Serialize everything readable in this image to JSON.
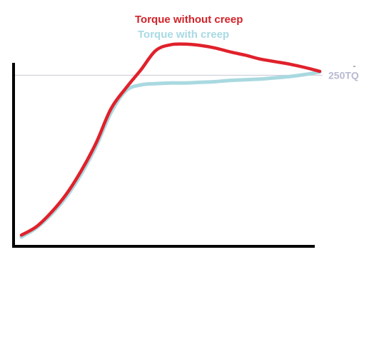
{
  "chart_data": {
    "type": "line",
    "title": "",
    "xlabel": "",
    "ylabel": "",
    "xlim": [
      0,
      100
    ],
    "ylim": [
      0,
      300
    ],
    "grid": false,
    "legend_placement": "top-center",
    "reference_line": {
      "label": "250TQ",
      "y": 250,
      "color": "#c8c8d8",
      "label_color": "#b9b9d2"
    },
    "series": [
      {
        "name": "Torque with creep",
        "color": "#a9d9e0",
        "x": [
          0,
          5,
          10,
          15,
          20,
          25,
          30,
          35,
          40,
          45,
          50,
          55,
          60,
          65,
          70,
          75,
          80,
          85,
          90,
          95,
          100
        ],
        "y": [
          0,
          14,
          35,
          62,
          97,
          140,
          192,
          226,
          235,
          237,
          238,
          238,
          239,
          240,
          242,
          243,
          244,
          246,
          248,
          251,
          255
        ]
      },
      {
        "name": "Torque without creep",
        "color": "#e0212b",
        "x": [
          0,
          5,
          10,
          15,
          20,
          25,
          30,
          35,
          40,
          45,
          50,
          55,
          60,
          65,
          70,
          75,
          80,
          85,
          90,
          95,
          100
        ],
        "y": [
          3,
          16,
          38,
          66,
          102,
          145,
          198,
          230,
          258,
          288,
          297,
          298,
          296,
          292,
          286,
          281,
          275,
          271,
          267,
          262,
          256
        ]
      }
    ]
  }
}
